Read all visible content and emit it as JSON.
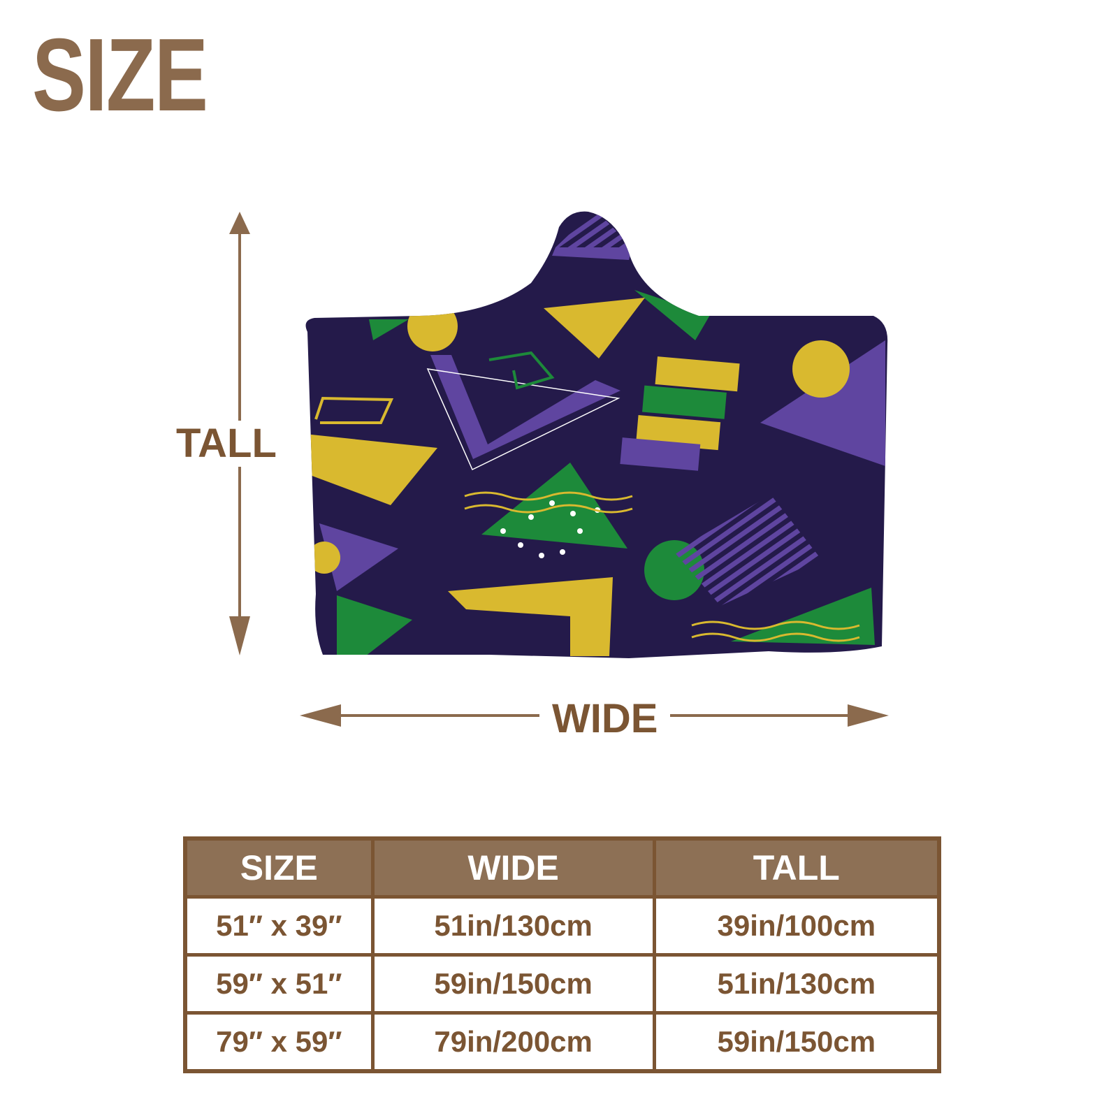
{
  "title": "SIZE",
  "diagram": {
    "tall_label": "TALL",
    "wide_label": "WIDE",
    "colors": {
      "arrow": "#8b6a4d",
      "background": "#241a4a",
      "purple": "#5f45a0",
      "green": "#1d8a3a",
      "gold": "#d9b92f"
    }
  },
  "table": {
    "headers": [
      "SIZE",
      "WIDE",
      "TALL"
    ],
    "rows": [
      [
        "51″ x 39″",
        "51in/130cm",
        "39in/100cm"
      ],
      [
        "59″ x 51″",
        "59in/150cm",
        "51in/130cm"
      ],
      [
        "79″ x 59″",
        "79in/200cm",
        "59in/150cm"
      ]
    ],
    "colors": {
      "header_bg": "#8d7055",
      "border": "#7b5533",
      "text": "#7b5533"
    }
  }
}
